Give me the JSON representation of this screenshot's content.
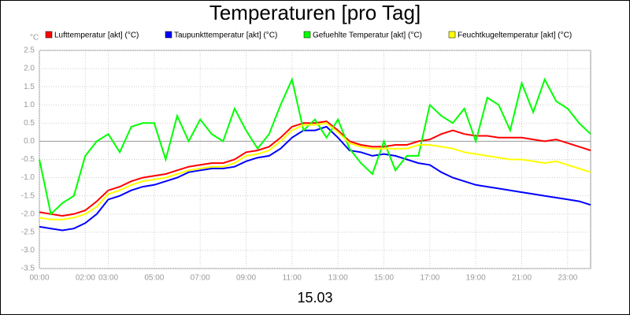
{
  "chart_data": {
    "type": "line",
    "title": "Temperaturen [pro Tag]",
    "x_label": "15.03",
    "y_unit": "°C",
    "x": [
      0,
      0.5,
      1,
      1.5,
      2,
      2.5,
      3,
      3.5,
      4,
      4.5,
      5,
      5.5,
      6,
      6.5,
      7,
      7.5,
      8,
      8.5,
      9,
      9.5,
      10,
      10.5,
      11,
      11.5,
      12,
      12.5,
      13,
      13.5,
      14,
      14.5,
      15,
      15.5,
      16,
      16.5,
      17,
      17.5,
      18,
      18.5,
      19,
      19.5,
      20,
      20.5,
      21,
      21.5,
      22,
      22.5,
      23,
      23.5,
      24
    ],
    "series": [
      {
        "name": "Lufttemperatur [akt] (°C)",
        "color": "#ff0000",
        "values": [
          -1.95,
          -2.0,
          -2.05,
          -2.0,
          -1.9,
          -1.65,
          -1.35,
          -1.25,
          -1.1,
          -1.0,
          -0.95,
          -0.9,
          -0.8,
          -0.7,
          -0.65,
          -0.6,
          -0.6,
          -0.5,
          -0.3,
          -0.25,
          -0.15,
          0.1,
          0.4,
          0.5,
          0.5,
          0.55,
          0.3,
          0.0,
          -0.1,
          -0.15,
          -0.15,
          -0.1,
          -0.1,
          0.0,
          0.05,
          0.2,
          0.3,
          0.2,
          0.15,
          0.15,
          0.1,
          0.1,
          0.1,
          0.05,
          0.0,
          0.05,
          -0.05,
          -0.15,
          -0.25
        ]
      },
      {
        "name": "Taupunkttemperatur [akt] (°C)",
        "color": "#0000ff",
        "values": [
          -2.35,
          -2.4,
          -2.45,
          -2.4,
          -2.25,
          -2.0,
          -1.6,
          -1.5,
          -1.35,
          -1.25,
          -1.2,
          -1.1,
          -1.0,
          -0.85,
          -0.8,
          -0.75,
          -0.75,
          -0.7,
          -0.55,
          -0.45,
          -0.4,
          -0.2,
          0.1,
          0.3,
          0.3,
          0.4,
          0.1,
          -0.25,
          -0.3,
          -0.4,
          -0.35,
          -0.4,
          -0.5,
          -0.6,
          -0.65,
          -0.85,
          -1.0,
          -1.1,
          -1.2,
          -1.25,
          -1.3,
          -1.35,
          -1.4,
          -1.45,
          -1.5,
          -1.55,
          -1.6,
          -1.65,
          -1.75
        ]
      },
      {
        "name": "Gefuehlte Temperatur [akt] (°C)",
        "color": "#00ff00",
        "values": [
          -0.5,
          -2.0,
          -1.7,
          -1.5,
          -0.4,
          0.0,
          0.2,
          -0.3,
          0.4,
          0.5,
          0.5,
          -0.5,
          0.7,
          0.0,
          0.6,
          0.2,
          0.0,
          0.9,
          0.3,
          -0.2,
          0.2,
          1.0,
          1.7,
          0.3,
          0.6,
          0.1,
          0.6,
          -0.2,
          -0.6,
          -0.9,
          0.0,
          -0.8,
          -0.4,
          -0.4,
          1.0,
          0.7,
          0.5,
          0.9,
          0.0,
          1.2,
          1.0,
          0.3,
          1.6,
          0.8,
          1.7,
          1.1,
          0.9,
          0.5,
          0.2
        ]
      },
      {
        "name": "Feuchtkugeltemperatur [akt] (°C)",
        "color": "#ffff00",
        "values": [
          -2.1,
          -2.15,
          -2.15,
          -2.1,
          -2.0,
          -1.8,
          -1.45,
          -1.35,
          -1.2,
          -1.1,
          -1.05,
          -1.0,
          -0.9,
          -0.8,
          -0.75,
          -0.7,
          -0.7,
          -0.6,
          -0.4,
          -0.35,
          -0.25,
          0.0,
          0.3,
          0.45,
          0.45,
          0.5,
          0.25,
          -0.05,
          -0.15,
          -0.2,
          -0.2,
          -0.2,
          -0.2,
          -0.1,
          -0.1,
          -0.15,
          -0.2,
          -0.3,
          -0.35,
          -0.4,
          -0.45,
          -0.5,
          -0.5,
          -0.55,
          -0.6,
          -0.55,
          -0.65,
          -0.75,
          -0.85
        ]
      }
    ],
    "xlim": [
      0,
      24
    ],
    "xticks": [
      {
        "value": 0,
        "label": "00:00"
      },
      {
        "value": 2,
        "label": "02:00"
      },
      {
        "value": 3,
        "label": "03:00"
      },
      {
        "value": 5,
        "label": "05:00"
      },
      {
        "value": 7,
        "label": "07:00"
      },
      {
        "value": 9,
        "label": "09:00"
      },
      {
        "value": 11,
        "label": "11:00"
      },
      {
        "value": 13,
        "label": "13:00"
      },
      {
        "value": 15,
        "label": "15:00"
      },
      {
        "value": 17,
        "label": "17:00"
      },
      {
        "value": 19,
        "label": "19:00"
      },
      {
        "value": 21,
        "label": "21:00"
      },
      {
        "value": 23,
        "label": "23:00"
      }
    ],
    "ylim": [
      -3.5,
      2.5
    ],
    "yticks": [
      2.5,
      {
        "value": 2,
        "label": "2.0"
      },
      1.5,
      {
        "value": 1,
        "label": "1.0"
      },
      0.5,
      {
        "value": 0,
        "label": "0.0"
      },
      -0.5,
      {
        "value": -1,
        "label": "-1.0"
      },
      -1.5,
      {
        "value": -2,
        "label": "-2.0"
      },
      -2.5,
      {
        "value": -3,
        "label": "-3.0"
      },
      -3.5
    ],
    "grid": true
  }
}
